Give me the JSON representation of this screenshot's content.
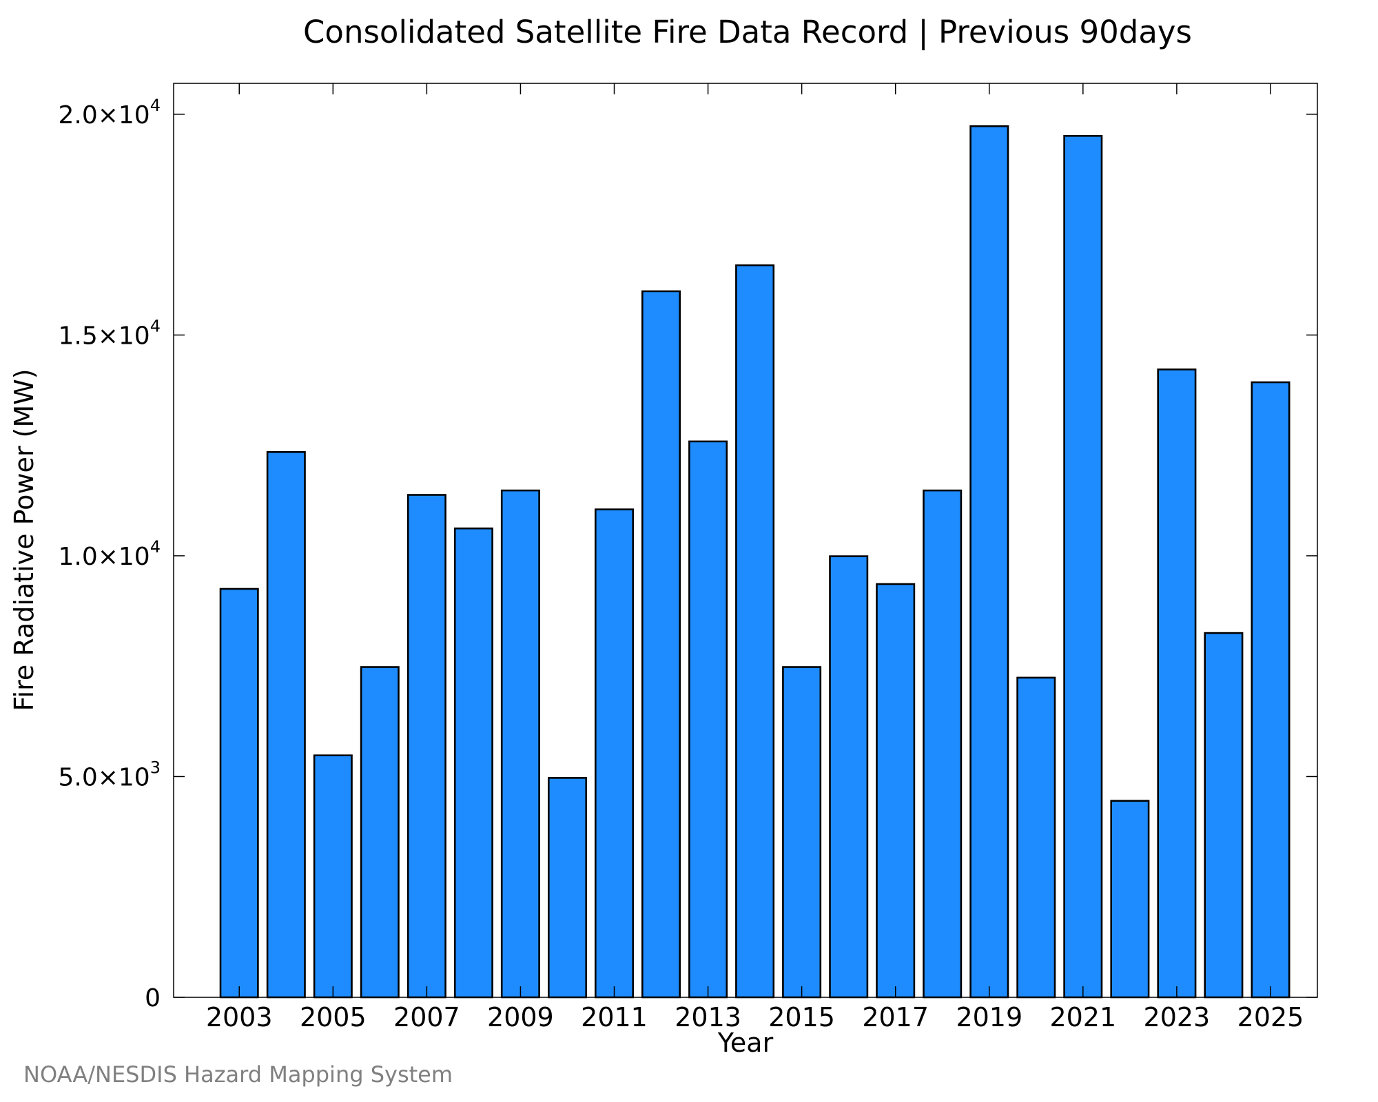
{
  "chart_data": {
    "type": "bar",
    "title": "Consolidated Satellite Fire Data Record | Previous 90days",
    "xlabel": "Year",
    "ylabel": "Fire Radiative Power (MW)",
    "categories": [
      "2003",
      "2004",
      "2005",
      "2006",
      "2007",
      "2008",
      "2009",
      "2010",
      "2011",
      "2012",
      "2013",
      "2014",
      "2015",
      "2016",
      "2017",
      "2018",
      "2019",
      "2020",
      "2021",
      "2022",
      "2023",
      "2024",
      "2025"
    ],
    "values": [
      9250,
      12350,
      5480,
      7480,
      11380,
      10620,
      11480,
      4970,
      11050,
      15990,
      12590,
      16580,
      7480,
      9990,
      9360,
      11480,
      19730,
      7240,
      19510,
      4450,
      14220,
      8250,
      13930
    ],
    "ylim": [
      0,
      20700
    ],
    "xlim": [
      2001.6,
      2026.0
    ],
    "yticks": [
      {
        "value": 0,
        "mantissa": "0",
        "exponent": ""
      },
      {
        "value": 5000,
        "mantissa": "5.0×10",
        "exponent": "3"
      },
      {
        "value": 10000,
        "mantissa": "1.0×10",
        "exponent": "4"
      },
      {
        "value": 15000,
        "mantissa": "1.5×10",
        "exponent": "4"
      },
      {
        "value": 20000,
        "mantissa": "2.0×10",
        "exponent": "4"
      }
    ],
    "xtick_labels": [
      "2003",
      "2005",
      "2007",
      "2009",
      "2011",
      "2013",
      "2015",
      "2017",
      "2019",
      "2021",
      "2023",
      "2025"
    ],
    "bar_color": "#1e8cff",
    "grid": false,
    "legend": "none",
    "credit": "NOAA/NESDIS Hazard Mapping System"
  }
}
